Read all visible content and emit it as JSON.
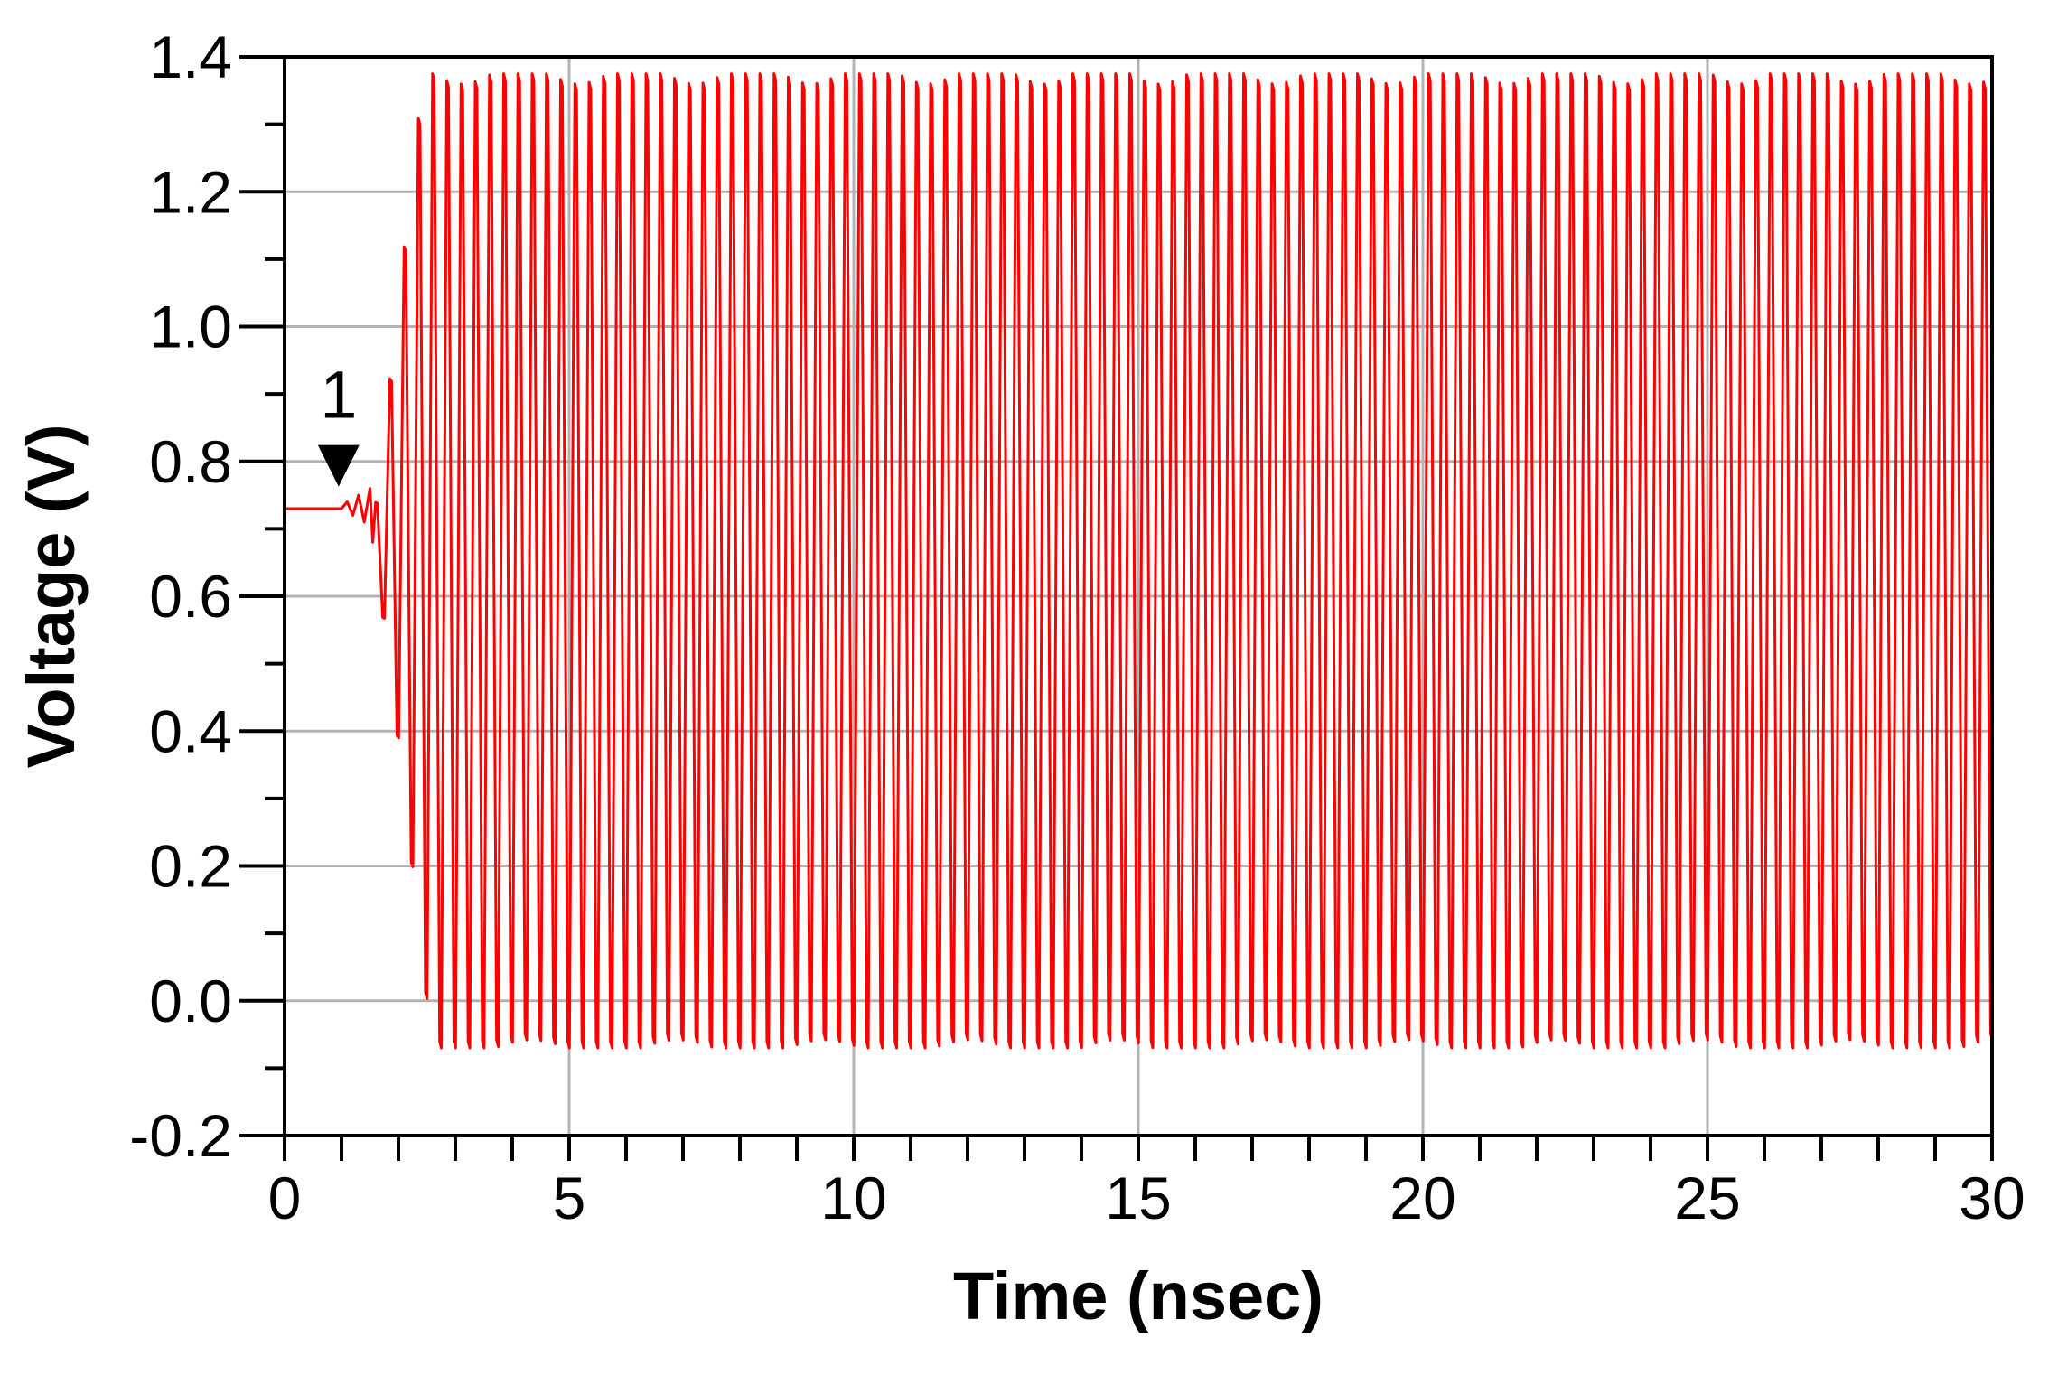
{
  "chart_data": {
    "type": "line",
    "title": "",
    "xlabel": "Time (nsec)",
    "ylabel": "Voltage (V)",
    "xlim": [
      0,
      30
    ],
    "ylim": [
      -0.2,
      1.4
    ],
    "x_ticks": [
      0,
      5,
      10,
      15,
      20,
      25,
      30
    ],
    "x_tick_labels": [
      "0",
      "5",
      "10",
      "15",
      "20",
      "25",
      "30"
    ],
    "y_ticks": [
      -0.2,
      0.0,
      0.2,
      0.4,
      0.6,
      0.8,
      1.0,
      1.2,
      1.4
    ],
    "y_tick_labels": [
      "-0.2",
      "0.0",
      "0.2",
      "0.4",
      "0.6",
      "0.8",
      "1.0",
      "1.2",
      "1.4"
    ],
    "x_minor_step": 1,
    "y_minor_step": 0.1,
    "grid": true,
    "legend": "none",
    "series": [
      {
        "color": "#ff0000",
        "initial_level_V": 0.73,
        "startup_end_ns": 1.55,
        "oscillation_start_ns": 1.6,
        "period_ns": 0.25,
        "steady_high_V": 1.375,
        "steady_low_V": -0.07,
        "description_points": [
          [
            0,
            0.73
          ],
          [
            1.0,
            0.73
          ],
          [
            1.1,
            0.74
          ],
          [
            1.2,
            0.72
          ],
          [
            1.3,
            0.75
          ],
          [
            1.4,
            0.71
          ],
          [
            1.5,
            0.76
          ],
          [
            1.55,
            0.68
          ],
          [
            1.7,
            0.85
          ],
          [
            1.85,
            0.5
          ],
          [
            1.95,
            0.93
          ],
          [
            2.05,
            0.2
          ],
          [
            2.2,
            1.29
          ],
          [
            2.35,
            -0.05
          ],
          [
            2.5,
            1.375
          ],
          [
            2.65,
            -0.07
          ]
        ]
      }
    ],
    "annotations": [
      {
        "text": "1",
        "marker": "down-triangle",
        "x": 0.95,
        "y": 0.76
      }
    ]
  }
}
